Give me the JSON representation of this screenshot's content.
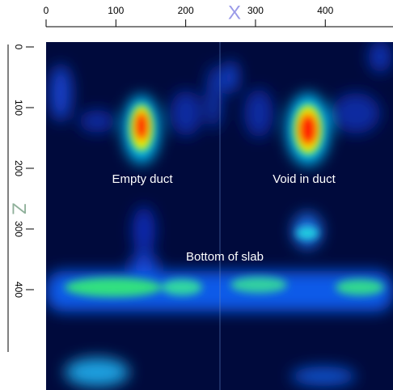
{
  "chart_data": {
    "type": "image",
    "xlabel": "X",
    "ylabel": "Z",
    "xlim": [
      0,
      497
    ],
    "xticks": [
      0,
      100,
      200,
      300,
      400
    ],
    "ylim": [
      0,
      500
    ],
    "yticks": [
      0,
      100,
      200,
      300,
      400
    ],
    "annotations": [
      "Empty duct",
      "Void in duct",
      "Bottom of slab"
    ]
  }
}
